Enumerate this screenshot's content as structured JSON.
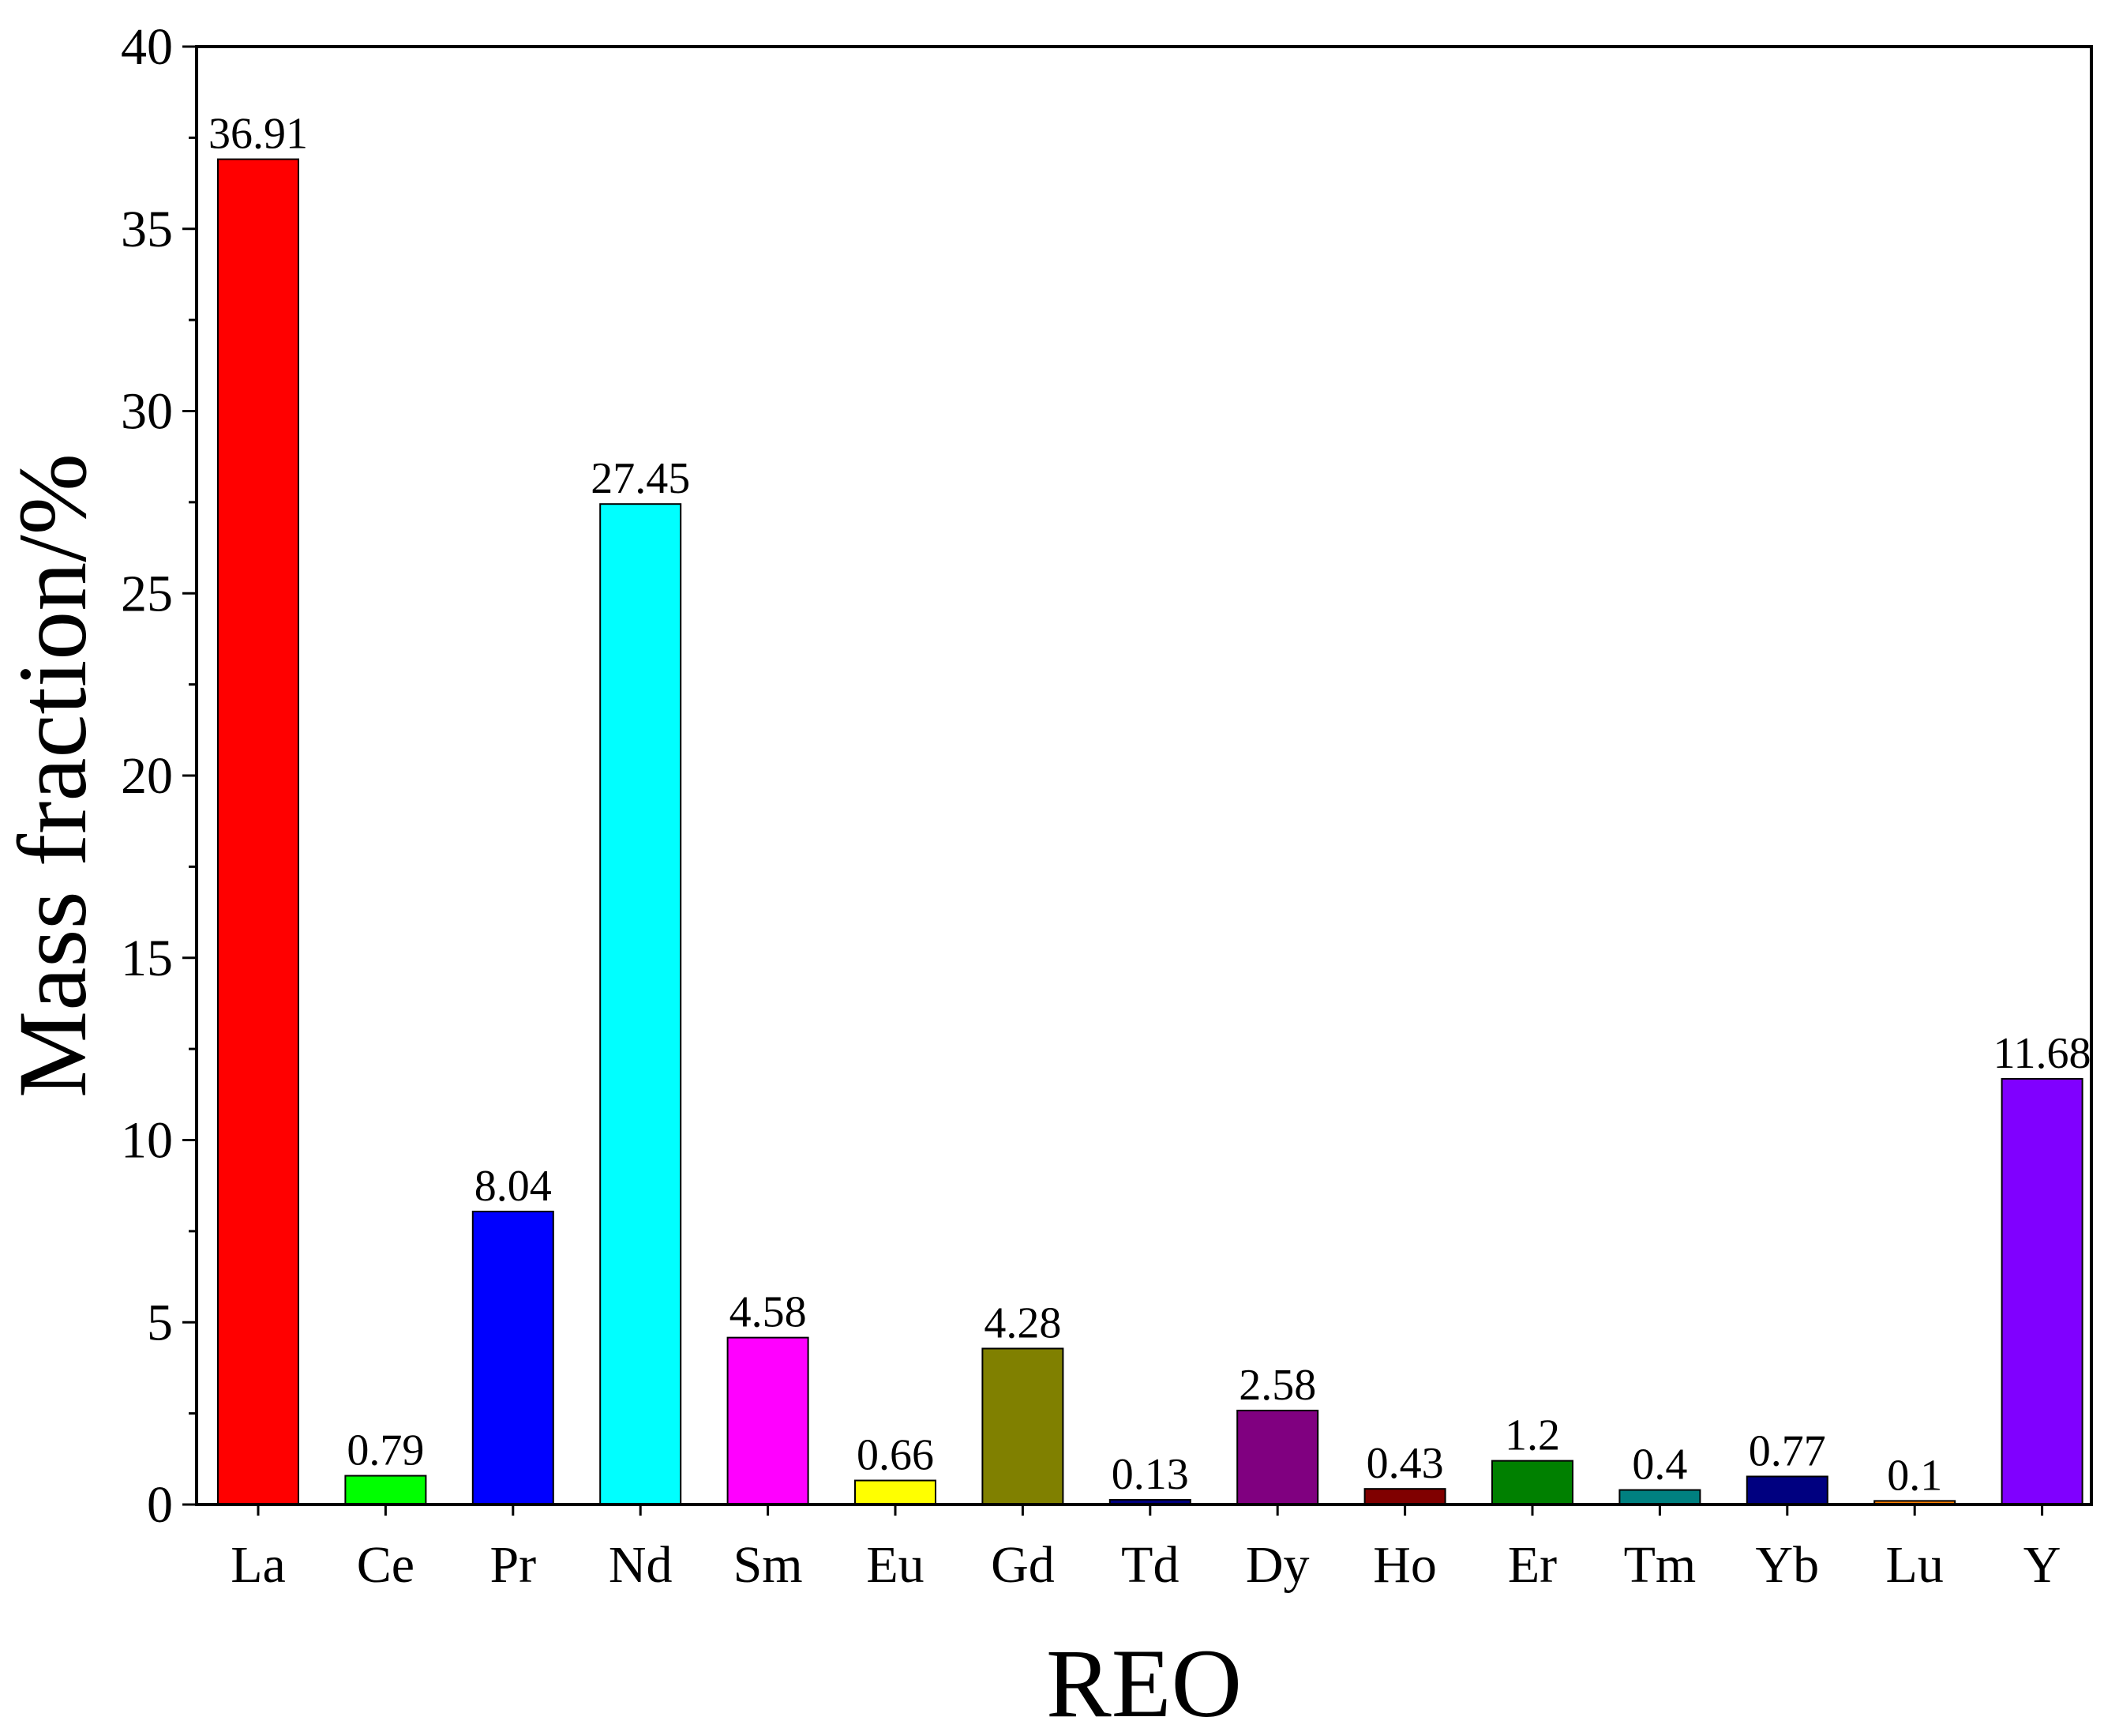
{
  "chart_data": {
    "type": "bar",
    "title": "",
    "xlabel": "REO",
    "ylabel": "Mass fraction/%",
    "ylim": [
      0,
      40
    ],
    "yticks": [
      0,
      5,
      10,
      15,
      20,
      25,
      30,
      35,
      40
    ],
    "grid": false,
    "legend": "none",
    "categories": [
      "La",
      "Ce",
      "Pr",
      "Nd",
      "Sm",
      "Eu",
      "Gd",
      "Td",
      "Dy",
      "Ho",
      "Er",
      "Tm",
      "Yb",
      "Lu",
      "Y"
    ],
    "values": [
      36.91,
      0.79,
      8.04,
      27.45,
      4.58,
      0.66,
      4.28,
      0.13,
      2.58,
      0.43,
      1.2,
      0.4,
      0.77,
      0.1,
      11.68
    ],
    "value_labels": [
      "36.91",
      "0.79",
      "8.04",
      "27.45",
      "4.58",
      "0.66",
      "4.28",
      "0.13",
      "2.58",
      "0.43",
      "1.2",
      "0.4",
      "0.77",
      "0.1",
      "11.68"
    ],
    "colors": [
      "#ff0000",
      "#00ff00",
      "#0000ff",
      "#00ffff",
      "#ff00ff",
      "#ffff00",
      "#808000",
      "#000080",
      "#800080",
      "#800000",
      "#008000",
      "#008080",
      "#000080",
      "#ff8000",
      "#8000ff"
    ]
  }
}
